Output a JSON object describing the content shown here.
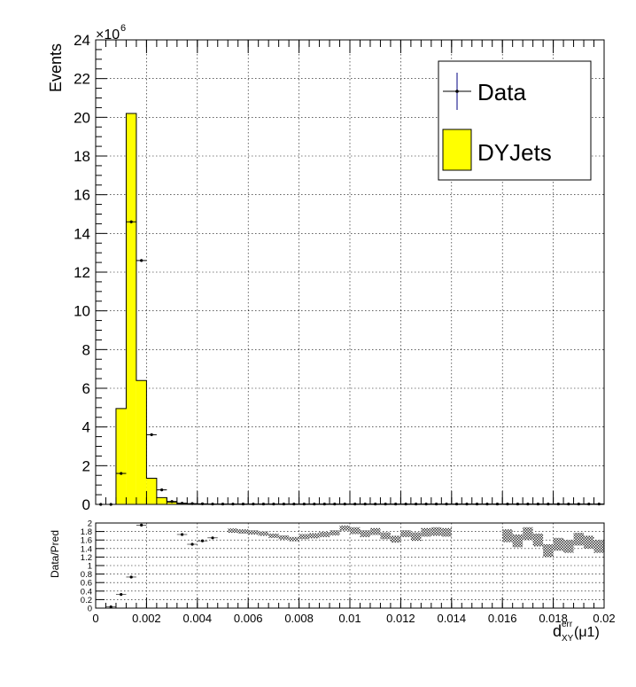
{
  "colors": {
    "mc_fill": "#ffff00",
    "data_marker": "#000000",
    "data_error": "#000080",
    "ratio_band": "#333333",
    "grid": "#000000"
  },
  "chart_data": [
    {
      "type": "bar",
      "ylabel": "Events",
      "y_exponent_label": "×10",
      "y_exponent_power": "6",
      "xlim": [
        0,
        0.02
      ],
      "ylim": [
        0,
        24
      ],
      "y_ticks": [
        0,
        2,
        4,
        6,
        8,
        10,
        12,
        14,
        16,
        18,
        20,
        22,
        24
      ],
      "grid": true,
      "legend_position": "top-right",
      "legend": [
        {
          "label": "Data",
          "icon": "marker-with-error-bar-icon"
        },
        {
          "label": "DYJets",
          "icon": "yellow-filled-box-icon"
        }
      ],
      "bin_width": 0.0004,
      "series": [
        {
          "name": "DYJets",
          "style": "histogram",
          "bin_edges_start": [
            0.0008,
            0.0012,
            0.0016,
            0.002,
            0.0024,
            0.0028,
            0.0032,
            0.0036
          ],
          "values": [
            4.95,
            20.2,
            6.4,
            1.35,
            0.35,
            0.12,
            0.05,
            0.02
          ]
        },
        {
          "name": "Data",
          "style": "points",
          "x": [
            0.0002,
            0.0006,
            0.001,
            0.0014,
            0.0018,
            0.0022,
            0.0026,
            0.003,
            0.0034,
            0.0038,
            0.0042,
            0.0046,
            0.005,
            0.0054,
            0.0058,
            0.0062,
            0.0066,
            0.007,
            0.0074,
            0.0078,
            0.0082,
            0.0086,
            0.009,
            0.0094,
            0.0098,
            0.0102,
            0.0106,
            0.011,
            0.0114,
            0.0118,
            0.0122,
            0.0126,
            0.013,
            0.0134,
            0.0138,
            0.0142,
            0.0146,
            0.015,
            0.0154,
            0.0158,
            0.0162,
            0.0166,
            0.017,
            0.0174,
            0.0178,
            0.0182,
            0.0186,
            0.019,
            0.0194,
            0.0198
          ],
          "values": [
            0.0,
            0.0,
            1.6,
            14.6,
            12.6,
            3.6,
            0.75,
            0.15,
            0.06,
            0.04,
            0.03,
            0.02,
            0.02,
            0.02,
            0.02,
            0.02,
            0.02,
            0.02,
            0.02,
            0.02,
            0.02,
            0.02,
            0.02,
            0.02,
            0.02,
            0.02,
            0.02,
            0.02,
            0.02,
            0.02,
            0.02,
            0.02,
            0.02,
            0.02,
            0.02,
            0.02,
            0.02,
            0.02,
            0.02,
            0.02,
            0.02,
            0.02,
            0.02,
            0.02,
            0.02,
            0.02,
            0.02,
            0.02,
            0.02,
            0.02
          ]
        }
      ]
    },
    {
      "type": "scatter",
      "ylabel": "Data/Pred",
      "xlabel_main": "d",
      "xlabel_sup": "err",
      "xlabel_sub": "XY",
      "xlabel_tail": "(μ1)",
      "xlim": [
        0,
        0.02
      ],
      "ylim": [
        0,
        2
      ],
      "x_ticks": [
        0,
        0.002,
        0.004,
        0.006,
        0.008,
        0.01,
        0.012,
        0.014,
        0.016,
        0.018,
        0.02
      ],
      "x_tick_labels": [
        "0",
        "0.002",
        "0.004",
        "0.006",
        "0.008",
        "0.01",
        "0.012",
        "0.014",
        "0.016",
        "0.018",
        "0.02"
      ],
      "y_ticks": [
        0,
        0.2,
        0.4,
        0.6,
        0.8,
        1,
        1.2,
        1.4,
        1.6,
        1.8,
        2
      ],
      "y_tick_labels": [
        "0",
        "0.2",
        "0.4",
        "0.6",
        "0.8",
        "1",
        "1.2",
        "1.4",
        "1.6",
        "1.8",
        "2"
      ],
      "grid": true,
      "points": {
        "x": [
          0.0006,
          0.001,
          0.0014,
          0.0018,
          0.0034,
          0.0038,
          0.0042,
          0.0046
        ],
        "values": [
          0.03,
          0.32,
          0.73,
          1.95,
          1.73,
          1.5,
          1.58,
          1.65
        ]
      },
      "band": {
        "x": [
          0.0054,
          0.0058,
          0.0062,
          0.0066,
          0.007,
          0.0074,
          0.0078,
          0.0082,
          0.0086,
          0.009,
          0.0094,
          0.0098,
          0.0102,
          0.0106,
          0.011,
          0.0114,
          0.0118,
          0.0122,
          0.0126,
          0.013,
          0.0134,
          0.0138,
          0.0162,
          0.0166,
          0.017,
          0.0174,
          0.0178,
          0.0182,
          0.0186,
          0.019,
          0.0194,
          0.0198
        ],
        "values": [
          1.82,
          1.8,
          1.78,
          1.75,
          1.7,
          1.66,
          1.62,
          1.68,
          1.7,
          1.73,
          1.77,
          1.88,
          1.82,
          1.75,
          1.8,
          1.7,
          1.62,
          1.75,
          1.68,
          1.78,
          1.8,
          1.78,
          1.7,
          1.58,
          1.75,
          1.6,
          1.35,
          1.5,
          1.45,
          1.62,
          1.55,
          1.45
        ],
        "half_width": [
          0.05,
          0.05,
          0.05,
          0.05,
          0.05,
          0.05,
          0.05,
          0.06,
          0.06,
          0.06,
          0.06,
          0.06,
          0.08,
          0.08,
          0.08,
          0.08,
          0.08,
          0.08,
          0.1,
          0.1,
          0.1,
          0.1,
          0.15,
          0.15,
          0.15,
          0.15,
          0.15,
          0.15,
          0.15,
          0.15,
          0.15,
          0.15
        ]
      }
    }
  ]
}
